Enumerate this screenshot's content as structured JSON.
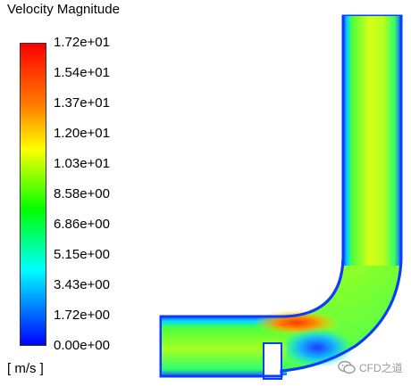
{
  "legend": {
    "title": "Velocity Magnitude",
    "unit": "[ m/s ]",
    "ticks": [
      "1.72e+01",
      "1.54e+01",
      "1.37e+01",
      "1.20e+01",
      "1.03e+01",
      "8.58e+00",
      "6.86e+00",
      "5.15e+00",
      "3.43e+00",
      "1.72e+00",
      "0.00e+00"
    ],
    "gradient_colors": [
      "#ff0000",
      "#ff7a00",
      "#ffff00",
      "#00ff00",
      "#00ffff",
      "#0000ff"
    ]
  },
  "watermark": {
    "text": "CFD之道",
    "icon": "wechat-icon"
  }
}
